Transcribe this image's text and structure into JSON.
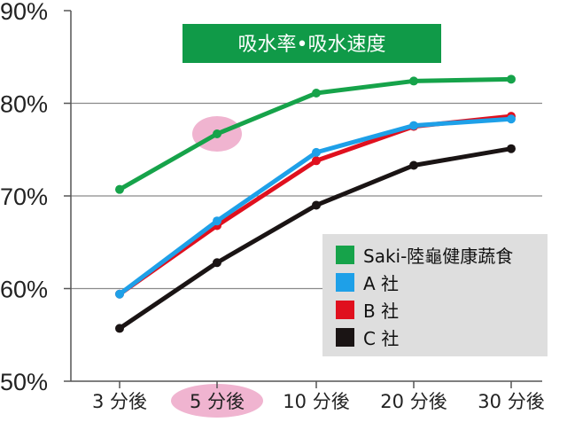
{
  "chart_data": {
    "type": "line",
    "title": "吸水率•吸水速度",
    "categories": [
      "3 分後",
      "5 分後",
      "10 分後",
      "20 分後",
      "30 分後"
    ],
    "ylim": [
      50,
      90
    ],
    "yticks": [
      "50%",
      "60%",
      "70%",
      "80%",
      "90%"
    ],
    "ytick_values": [
      50,
      60,
      70,
      80,
      90
    ],
    "grid": true,
    "legend_position": "bottom-right",
    "highlight_category": "5 分後",
    "series": [
      {
        "name": "Saki-陸龜健康蔬食",
        "color": "#16a34a",
        "values": [
          70.7,
          76.7,
          81.1,
          82.4,
          82.6
        ]
      },
      {
        "name": "A 社",
        "color": "#1ea0e8",
        "values": [
          59.4,
          67.3,
          74.7,
          77.6,
          78.3
        ]
      },
      {
        "name": "B 社",
        "color": "#e0101e",
        "values": [
          59.4,
          66.8,
          73.8,
          77.5,
          78.6
        ]
      },
      {
        "name": "C 社",
        "color": "#1a1414",
        "values": [
          55.7,
          62.8,
          69.0,
          73.3,
          75.1
        ]
      }
    ],
    "title_bg": "#109a48",
    "highlight_color": "#f0b4d0"
  }
}
